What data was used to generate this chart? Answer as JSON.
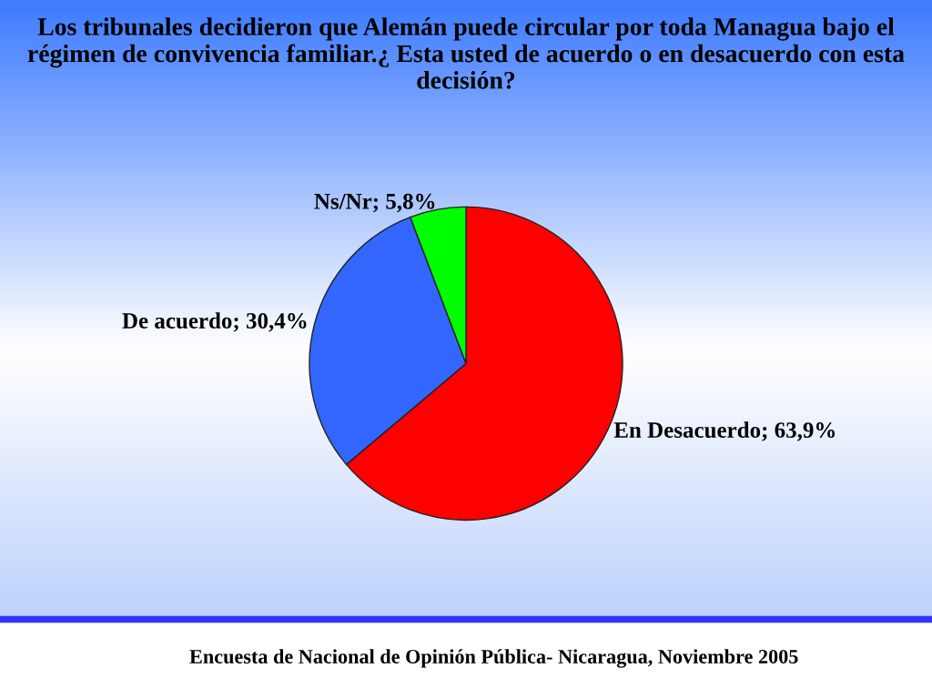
{
  "chart_data": {
    "type": "pie",
    "title": "Los tribunales decidieron que Alemán puede circular por toda Managua bajo el régimen de convivencia familiar.¿ Esta usted de acuerdo o en desacuerdo con esta decisión?",
    "categories": [
      "En Desacuerdo",
      "De acuerdo",
      "Ns/Nr"
    ],
    "values": [
      63.9,
      30.4,
      5.8
    ],
    "value_labels": [
      "63,9%",
      "30,4%",
      "5,8%"
    ],
    "colors": [
      "#ff0000",
      "#3366ff",
      "#00ff00"
    ],
    "annotations": [
      "Encuesta de Nacional de Opinión Pública- Nicaragua, Noviembre 2005"
    ]
  }
}
